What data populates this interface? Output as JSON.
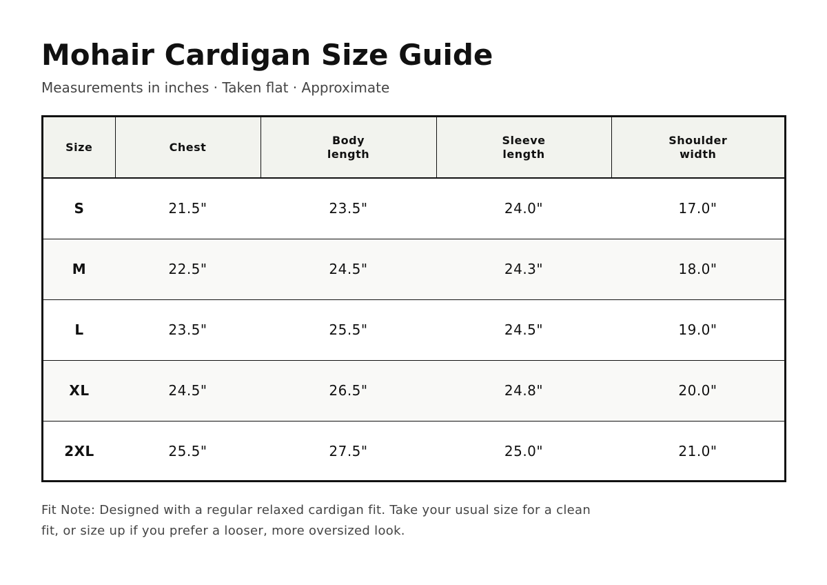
{
  "header": {
    "title": "Mohair Cardigan Size Guide",
    "subtitle": "Measurements in inches · Taken flat · Approximate"
  },
  "table": {
    "columns": [
      "Size",
      "Chest",
      "Body\nlength",
      "Sleeve\nlength",
      "Shoulder\nwidth"
    ],
    "rows": [
      [
        "S",
        "21.5\"",
        "23.5\"",
        "24.0\"",
        "17.0\""
      ],
      [
        "M",
        "22.5\"",
        "24.5\"",
        "24.3\"",
        "18.0\""
      ],
      [
        "L",
        "23.5\"",
        "25.5\"",
        "24.5\"",
        "19.0\""
      ],
      [
        "XL",
        "24.5\"",
        "26.5\"",
        "24.8\"",
        "20.0\""
      ],
      [
        "2XL",
        "25.5\"",
        "27.5\"",
        "25.0\"",
        "21.0\""
      ]
    ]
  },
  "footer": {
    "fit_note": "Fit Note: Designed with a regular relaxed cardigan fit. Take your usual size for a clean fit, or size up if you prefer a looser, more oversized look."
  },
  "colors": {
    "header_bg": "#f2f3ee",
    "stripe_bg": "#f9f9f7",
    "border": "#111111",
    "text_muted": "#444444"
  }
}
